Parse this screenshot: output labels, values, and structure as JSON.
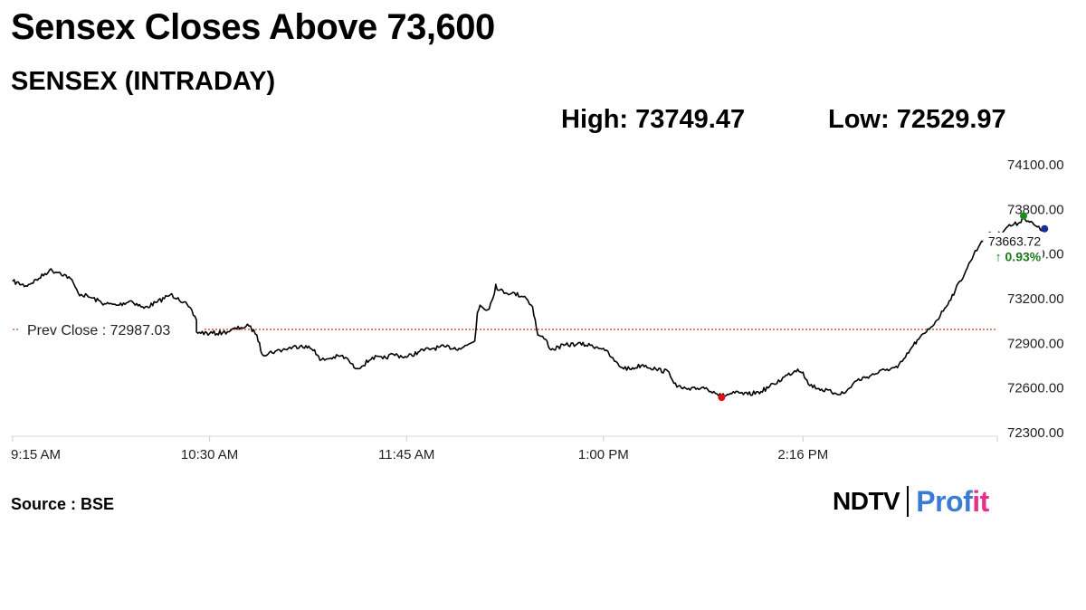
{
  "header": {
    "title": "Sensex Closes Above 73,600",
    "subtitle": "SENSEX (INTRADAY)",
    "high_text": "High: 73749.47",
    "low_text": "Low: 72529.97"
  },
  "footer": {
    "source": "Source : BSE",
    "logo_ndtv": "NDTV",
    "logo_profit_a": "Prof",
    "logo_profit_b": "it"
  },
  "chart_data": {
    "type": "line",
    "title": "SENSEX (INTRADAY)",
    "xlabel": "",
    "ylabel": "",
    "ylim": [
      72300,
      74100
    ],
    "y_ticks": [
      74100,
      73800,
      73500,
      73200,
      72900,
      72600,
      72300
    ],
    "y_tick_labels": [
      "74100.00",
      "73800.00",
      "73500.00",
      "73200.00",
      "72900.00",
      "72600.00",
      "72300.00"
    ],
    "x_range": [
      "09:15",
      "15:30"
    ],
    "x_ticks": [
      "09:15",
      "10:30",
      "11:45",
      "13:00",
      "14:16"
    ],
    "x_tick_labels": [
      "9:15 AM",
      "10:30 AM",
      "11:45 AM",
      "1:00 PM",
      "2:16 PM"
    ],
    "grid": false,
    "prev_close": {
      "value": 72987.03,
      "label": "Prev Close : 72987.03",
      "color": "#c00000"
    },
    "series": [
      {
        "color": "#000000",
        "points": [
          [
            "09:15",
            73310
          ],
          [
            "09:20",
            73280
          ],
          [
            "09:25",
            73330
          ],
          [
            "09:29",
            73385
          ],
          [
            "09:33",
            73370
          ],
          [
            "09:37",
            73330
          ],
          [
            "09:40",
            73230
          ],
          [
            "09:45",
            73200
          ],
          [
            "09:50",
            73160
          ],
          [
            "09:55",
            73150
          ],
          [
            "10:00",
            73180
          ],
          [
            "10:05",
            73130
          ],
          [
            "10:10",
            73170
          ],
          [
            "10:15",
            73220
          ],
          [
            "10:18",
            73200
          ],
          [
            "10:22",
            73140
          ],
          [
            "10:25",
            73050
          ],
          [
            "10:25",
            72970
          ],
          [
            "10:30",
            72960
          ],
          [
            "10:35",
            72965
          ],
          [
            "10:38",
            72980
          ],
          [
            "10:42",
            73000
          ],
          [
            "10:45",
            73010
          ],
          [
            "10:48",
            72950
          ],
          [
            "10:50",
            72820
          ],
          [
            "10:55",
            72840
          ],
          [
            "11:00",
            72860
          ],
          [
            "11:05",
            72880
          ],
          [
            "11:10",
            72850
          ],
          [
            "11:12",
            72780
          ],
          [
            "11:15",
            72790
          ],
          [
            "11:20",
            72810
          ],
          [
            "11:23",
            72780
          ],
          [
            "11:25",
            72730
          ],
          [
            "11:28",
            72740
          ],
          [
            "11:32",
            72800
          ],
          [
            "11:36",
            72790
          ],
          [
            "11:40",
            72820
          ],
          [
            "11:45",
            72800
          ],
          [
            "11:50",
            72840
          ],
          [
            "11:55",
            72860
          ],
          [
            "12:00",
            72870
          ],
          [
            "12:05",
            72860
          ],
          [
            "12:08",
            72880
          ],
          [
            "12:11",
            72910
          ],
          [
            "12:12",
            73100
          ],
          [
            "12:13",
            73150
          ],
          [
            "12:16",
            73120
          ],
          [
            "12:18",
            73200
          ],
          [
            "12:19",
            73290
          ],
          [
            "12:20",
            73250
          ],
          [
            "12:25",
            73230
          ],
          [
            "12:30",
            73210
          ],
          [
            "12:33",
            73140
          ],
          [
            "12:35",
            72950
          ],
          [
            "12:38",
            72920
          ],
          [
            "12:40",
            72850
          ],
          [
            "12:45",
            72880
          ],
          [
            "12:50",
            72890
          ],
          [
            "12:55",
            72880
          ],
          [
            "13:00",
            72860
          ],
          [
            "13:03",
            72800
          ],
          [
            "13:06",
            72740
          ],
          [
            "13:10",
            72720
          ],
          [
            "13:15",
            72750
          ],
          [
            "13:20",
            72720
          ],
          [
            "13:25",
            72700
          ],
          [
            "13:28",
            72600
          ],
          [
            "13:33",
            72580
          ],
          [
            "13:38",
            72600
          ],
          [
            "13:42",
            72570
          ],
          [
            "13:45",
            72540
          ],
          [
            "13:50",
            72560
          ],
          [
            "13:55",
            72550
          ],
          [
            "14:00",
            72570
          ],
          [
            "14:05",
            72620
          ],
          [
            "14:10",
            72680
          ],
          [
            "14:14",
            72720
          ],
          [
            "14:16",
            72700
          ],
          [
            "14:18",
            72620
          ],
          [
            "14:22",
            72590
          ],
          [
            "14:28",
            72560
          ],
          [
            "14:32",
            72560
          ],
          [
            "14:36",
            72640
          ],
          [
            "14:42",
            72680
          ],
          [
            "14:48",
            72720
          ],
          [
            "14:52",
            72730
          ],
          [
            "14:55",
            72800
          ],
          [
            "14:58",
            72880
          ],
          [
            "15:00",
            72920
          ],
          [
            "15:03",
            72970
          ],
          [
            "15:07",
            73050
          ],
          [
            "15:10",
            73130
          ],
          [
            "15:14",
            73250
          ],
          [
            "15:18",
            73380
          ],
          [
            "15:21",
            73490
          ],
          [
            "15:24",
            73580
          ],
          [
            "15:27",
            73640
          ],
          [
            "15:30",
            73620
          ],
          [
            "15:34",
            73680
          ],
          [
            "15:38",
            73700
          ],
          [
            "15:40",
            73740
          ],
          [
            "15:44",
            73690
          ],
          [
            "15:47",
            73650
          ],
          [
            "15:48",
            73663.72
          ]
        ]
      }
    ],
    "markers": [
      {
        "label": "high",
        "time": "15:40",
        "value": 73749.47,
        "color": "#1a8a1a"
      },
      {
        "label": "low",
        "time": "13:45",
        "value": 72529.97,
        "color": "#e01010"
      },
      {
        "label": "last",
        "time": "15:48",
        "value": 73663.72,
        "color": "#1a2d9a"
      }
    ],
    "last_value_label": "73663.72",
    "change_label": "↑ 0.93%",
    "change_color": "#1a7a1a"
  }
}
